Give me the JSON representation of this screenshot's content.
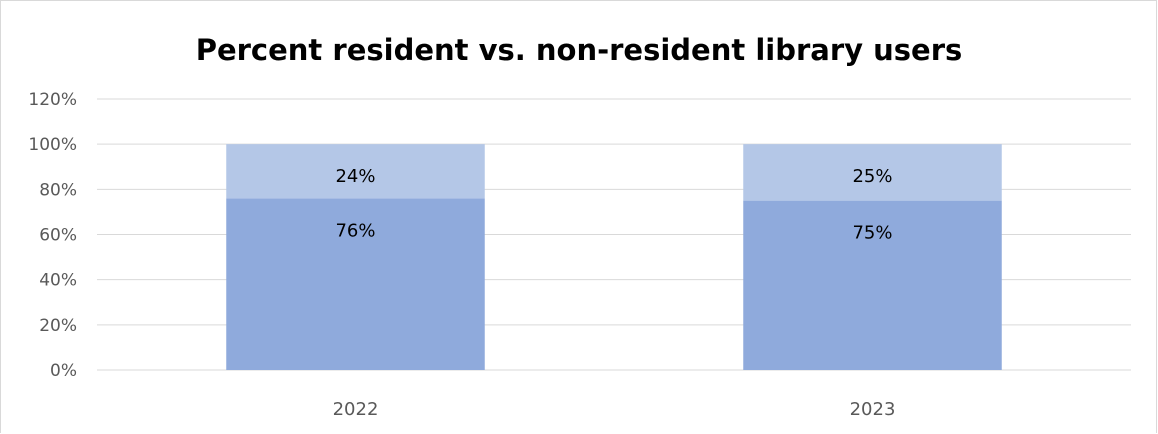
{
  "chart_data": {
    "type": "bar",
    "stacked": true,
    "title": "Percent resident vs. non-resident library users",
    "xlabel": "",
    "ylabel": "",
    "categories": [
      "2022",
      "2023"
    ],
    "series": [
      {
        "values": [
          76,
          75
        ],
        "data_labels": [
          "76%",
          "75%"
        ],
        "color": "#8faadc"
      },
      {
        "values": [
          24,
          25
        ],
        "data_labels": [
          "24%",
          "25%"
        ],
        "color": "#b4c7e7"
      }
    ],
    "ylim": [
      0,
      120
    ],
    "y_ticks": [
      0,
      20,
      40,
      60,
      80,
      100,
      120
    ],
    "y_tick_labels": [
      "0%",
      "20%",
      "40%",
      "60%",
      "80%",
      "100%",
      "120%"
    ],
    "grid": true,
    "legend": "none"
  }
}
